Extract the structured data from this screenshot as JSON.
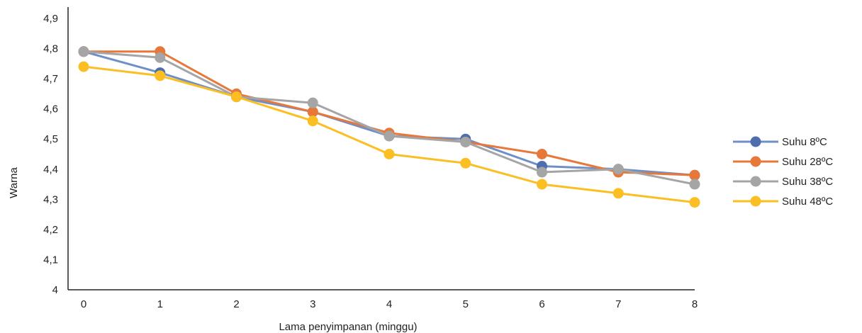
{
  "chart_data": {
    "type": "line",
    "xlabel": "Lama penyimpanan (minggu)",
    "ylabel": "Warna",
    "x": [
      0,
      1,
      2,
      3,
      4,
      5,
      6,
      7,
      8
    ],
    "ylim": [
      4,
      4.9
    ],
    "yticks": [
      "4",
      "4,1",
      "4,2",
      "4,3",
      "4,4",
      "4,5",
      "4,6",
      "4,7",
      "4,8",
      "4,9"
    ],
    "xticks": [
      "0",
      "1",
      "2",
      "3",
      "4",
      "5",
      "6",
      "7",
      "8"
    ],
    "grid": false,
    "legend": "right",
    "series": [
      {
        "name": "Suhu 8ºC",
        "color": "#6f8fc7",
        "marker_color": "#4f6eae",
        "values": [
          4.79,
          4.72,
          4.64,
          4.59,
          4.51,
          4.5,
          4.41,
          4.4,
          4.38
        ]
      },
      {
        "name": "Suhu 28ºC",
        "color": "#e8773a",
        "marker_color": "#e8773a",
        "values": [
          4.79,
          4.79,
          4.65,
          4.59,
          4.52,
          4.49,
          4.45,
          4.39,
          4.38
        ]
      },
      {
        "name": "Suhu 38ºC",
        "color": "#a5a5a5",
        "marker_color": "#a5a5a5",
        "values": [
          4.79,
          4.77,
          4.64,
          4.62,
          4.51,
          4.49,
          4.39,
          4.4,
          4.35
        ]
      },
      {
        "name": "Suhu 48ºC",
        "color": "#fbbf24",
        "marker_color": "#fbbf24",
        "values": [
          4.74,
          4.71,
          4.64,
          4.56,
          4.45,
          4.42,
          4.35,
          4.32,
          4.29
        ]
      }
    ]
  }
}
